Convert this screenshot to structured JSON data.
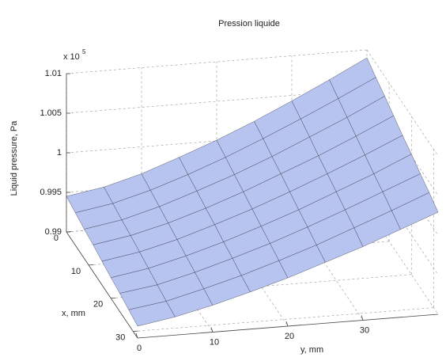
{
  "chart_data": {
    "type": "surface",
    "title": "Pression liquide",
    "x_label": "x, mm",
    "y_label": "y, mm",
    "z_label": "Liquid pressure, Pa",
    "z_multiplier": "x 10",
    "z_multiplier_exponent": "5",
    "x": [
      0,
      4,
      8,
      12,
      16,
      20,
      24,
      28,
      32
    ],
    "y": [
      0,
      5,
      10,
      15,
      20,
      25,
      30,
      35,
      40
    ],
    "z": [
      [
        0.9945,
        0.9953,
        0.9966,
        0.9983,
        1.0001,
        1.0021,
        1.0043,
        1.0066,
        1.009
      ],
      [
        0.9941,
        0.9949,
        0.9962,
        0.9978,
        0.9996,
        1.0016,
        1.0037,
        1.0059,
        1.0082
      ],
      [
        0.9937,
        0.9945,
        0.9958,
        0.9974,
        0.9991,
        1.001,
        1.0031,
        1.0052,
        1.0075
      ],
      [
        0.9934,
        0.9942,
        0.9954,
        0.9969,
        0.9986,
        1.0005,
        1.0024,
        1.0045,
        1.0067
      ],
      [
        0.993,
        0.9938,
        0.995,
        0.9965,
        0.9981,
        0.9999,
        1.0018,
        1.0038,
        1.0059
      ],
      [
        0.9926,
        0.9934,
        0.9946,
        0.996,
        0.9976,
        0.9993,
        1.0012,
        1.0031,
        1.0052
      ],
      [
        0.9923,
        0.993,
        0.9942,
        0.9956,
        0.9971,
        0.9988,
        1.0006,
        1.0025,
        1.0044
      ],
      [
        0.9919,
        0.9926,
        0.9938,
        0.9951,
        0.9966,
        0.9982,
        1.0,
        1.0018,
        1.0037
      ],
      [
        0.9915,
        0.9923,
        0.9934,
        0.9947,
        0.9961,
        0.9977,
        0.9993,
        1.0011,
        1.0029
      ]
    ],
    "color": "#b7c4f0",
    "edge_color": "#2a2a3a",
    "xlim": [
      0,
      32
    ],
    "ylim": [
      0,
      40
    ],
    "zlim": [
      0.99,
      1.01
    ],
    "xticks": [
      0,
      10,
      20,
      30
    ],
    "yticks": [
      0,
      10,
      20,
      30
    ],
    "zticks": [
      0.99,
      0.995,
      1,
      1.005,
      1.01
    ],
    "grid": true
  }
}
